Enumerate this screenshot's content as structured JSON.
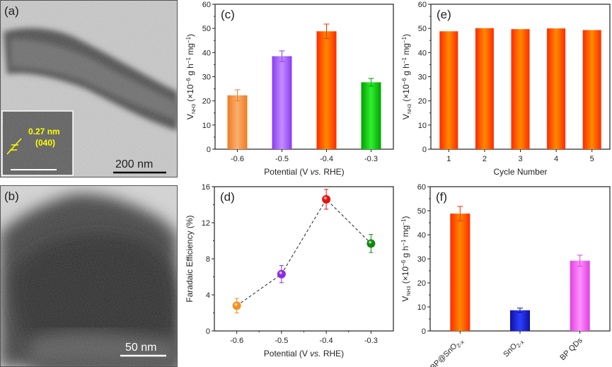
{
  "panels": {
    "a": {
      "label": "(a)",
      "scale_bar": "200 nm",
      "inset_spacing": "0.27 nm",
      "inset_plane": "(040)"
    },
    "b": {
      "label": "(b)",
      "scale_bar": "50 nm"
    }
  },
  "chart_data": [
    {
      "id": "c",
      "panel_label": "(c)",
      "type": "bar",
      "categories": [
        "-0.6",
        "-0.5",
        "-0.4",
        "-0.3"
      ],
      "values": [
        22.3,
        38.5,
        48.8,
        27.7
      ],
      "errors": [
        2.3,
        2.2,
        3.0,
        1.6
      ],
      "colors": [
        [
          "#f07a20",
          "#f8b070"
        ],
        [
          "#8a3cf0",
          "#c48cff"
        ],
        [
          "#ff2a00",
          "#ff8a00"
        ],
        [
          "#00a000",
          "#30f030"
        ]
      ],
      "xlabel": [
        "Potential (V ",
        "vs.",
        " RHE)"
      ],
      "ylabel": {
        "v": "V",
        "sub": "NH3",
        "pre": " (×10",
        "exp1": "−6",
        "mid": " g h",
        "exp2": "−1",
        "post": " mg",
        "exp3": "−1",
        "close": ")"
      },
      "ylim": [
        0,
        60
      ],
      "yticks": [
        0,
        10,
        20,
        30,
        40,
        50,
        60
      ],
      "grid": false
    },
    {
      "id": "e",
      "panel_label": "(e)",
      "type": "bar",
      "categories": [
        "1",
        "2",
        "3",
        "4",
        "5"
      ],
      "values": [
        48.8,
        50.1,
        49.7,
        50.0,
        49.3
      ],
      "errors": [
        0,
        0,
        0,
        0,
        0
      ],
      "colors": [
        [
          "#ff2a00",
          "#ff8a00"
        ],
        [
          "#ff2a00",
          "#ff8a00"
        ],
        [
          "#ff2a00",
          "#ff8a00"
        ],
        [
          "#ff2a00",
          "#ff8a00"
        ],
        [
          "#ff2a00",
          "#ff8a00"
        ]
      ],
      "xlabel": [
        "Cycle Number"
      ],
      "ylabel": {
        "v": "V",
        "sub": "NH3",
        "pre": " (×10",
        "exp1": "−6",
        "mid": " g h",
        "exp2": "−1",
        "post": " mg",
        "exp3": "−1",
        "close": ")"
      },
      "ylim": [
        0,
        60
      ],
      "yticks": [
        0,
        10,
        20,
        30,
        40,
        50,
        60
      ],
      "grid": false
    },
    {
      "id": "d",
      "panel_label": "(d)",
      "type": "line",
      "x": [
        -0.6,
        -0.5,
        -0.4,
        -0.3
      ],
      "xticklabels": [
        "-0.6",
        "-0.5",
        "-0.4",
        "-0.3"
      ],
      "values": [
        2.8,
        6.3,
        14.6,
        9.7
      ],
      "errors": [
        0.8,
        0.95,
        1.1,
        1.0
      ],
      "colors": [
        "#f39020",
        "#8a2be2",
        "#e81010",
        "#118811"
      ],
      "line_style": "dashed",
      "xlabel": [
        "Potential (V ",
        "vs.",
        " RHE)"
      ],
      "ylabel_text": "Faradaic Efficiency (%)",
      "xlim": [
        -0.65,
        -0.25
      ],
      "ylim": [
        0,
        16
      ],
      "yticks": [
        0,
        4,
        8,
        12,
        16
      ],
      "grid": false
    },
    {
      "id": "f",
      "panel_label": "(f)",
      "type": "bar",
      "categories": [
        [
          "BP@SnO",
          "2-x"
        ],
        [
          "SnO",
          "2-x"
        ],
        [
          "BP QDs",
          ""
        ]
      ],
      "values": [
        48.8,
        8.6,
        29.2
      ],
      "errors": [
        3.0,
        0.9,
        2.3
      ],
      "colors": [
        [
          "#ff2a00",
          "#ff8a00"
        ],
        [
          "#1010a0",
          "#2a40ff"
        ],
        [
          "#e040e0",
          "#ff90ff"
        ]
      ],
      "xlabel": [],
      "ylabel": {
        "v": "V",
        "sub": "NH3",
        "pre": " (×10",
        "exp1": "−6",
        "mid": " g h",
        "exp2": "−1",
        "post": " mg",
        "exp3": "−1",
        "close": ")"
      },
      "ylim": [
        0,
        60
      ],
      "yticks": [
        0,
        10,
        20,
        30,
        40,
        50,
        60
      ],
      "grid": false
    }
  ]
}
